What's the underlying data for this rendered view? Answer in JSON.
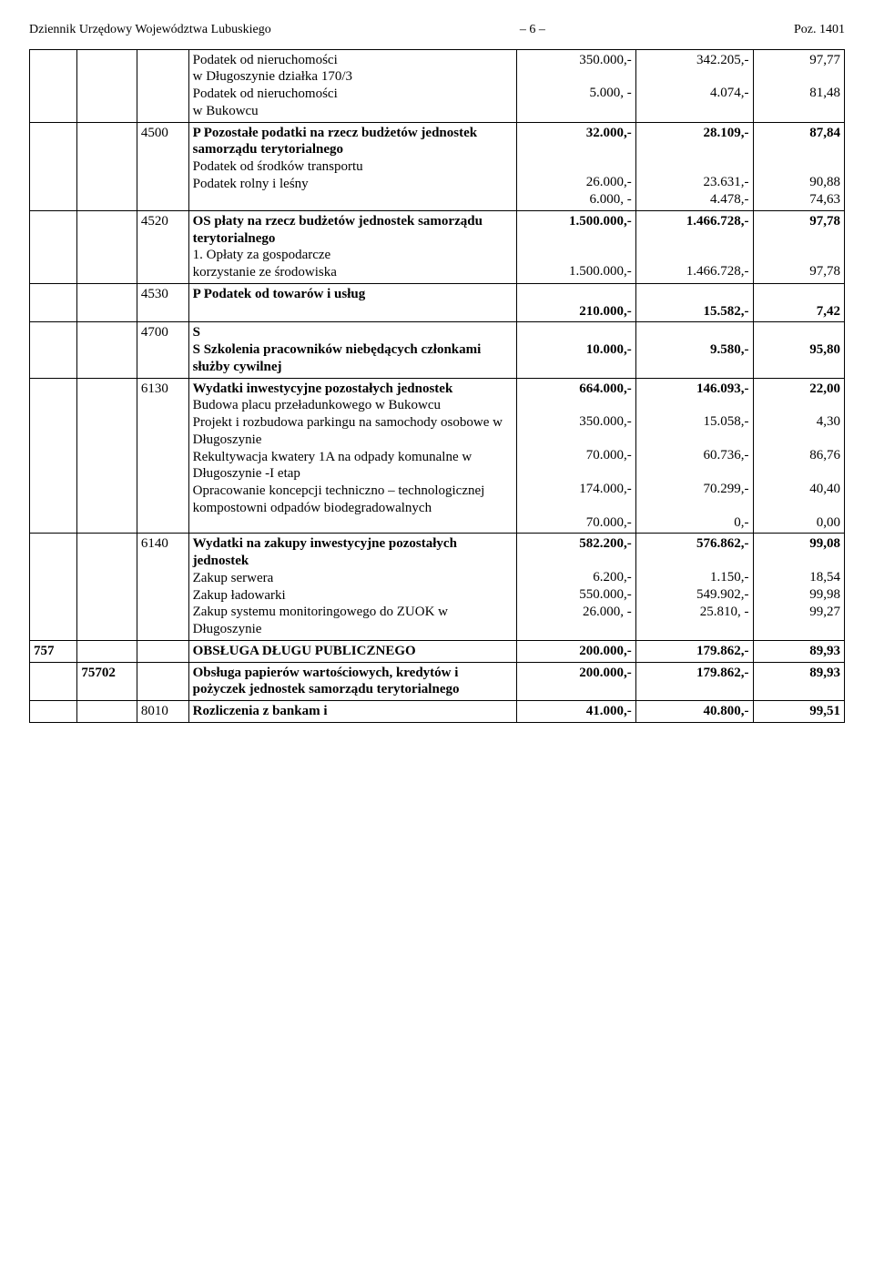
{
  "header": {
    "left": "Dziennik Urzędowy Województwa Lubuskiego",
    "center": "– 6 –",
    "right": "Poz. 1401"
  },
  "rows": {
    "r1": {
      "desc1": "Podatek od nieruchomości",
      "desc2": "w Długoszynie działka 170/3",
      "desc3": "Podatek od nieruchomości",
      "desc4": "w Bukowcu",
      "v_e1": "350.000,-",
      "v_f1": "342.205,-",
      "v_g1": "97,77",
      "v_e2": "5.000, -",
      "v_f2": "4.074,-",
      "v_g2": "81,48"
    },
    "r2": {
      "code": "4500",
      "title": "P Pozostałe podatki na rzecz budżetów jednostek samorządu terytorialnego",
      "line2": "Podatek od środków transportu",
      "line3": "Podatek rolny i leśny",
      "v_e1": "32.000,-",
      "v_f1": "28.109,-",
      "v_g1": "87,84",
      "v_e2": "26.000,-",
      "v_f2": "23.631,-",
      "v_g2": "90,88",
      "v_e3": "6.000, -",
      "v_f3": "4.478,-",
      "v_g3": "74,63"
    },
    "r3": {
      "code": "4520",
      "title": "OS płaty na rzecz budżetów jednostek samorządu terytorialnego",
      "line2a": "1. Opłaty za gospodarcze",
      "line2b": "korzystanie ze środowiska",
      "v_e1": "1.500.000,-",
      "v_f1": "1.466.728,-",
      "v_g1": "97,78",
      "v_e2": "1.500.000,-",
      "v_f2": "1.466.728,-",
      "v_g2": "97,78"
    },
    "r4": {
      "code": "4530",
      "title": "P Podatek od towarów i usług",
      "v_e1": "210.000,-",
      "v_f1": "15.582,-",
      "v_g1": "7,42"
    },
    "r5": {
      "code": "4700",
      "preline": "S",
      "title": "S Szkolenia pracowników niebędących członkami służby cywilnej",
      "v_e1": "10.000,-",
      "v_f1": "9.580,-",
      "v_g1": "95,80"
    },
    "r6": {
      "code": "6130",
      "title": "Wydatki inwestycyjne pozostałych jednostek",
      "l1": "Budowa placu przeładunkowego w Bukowcu",
      "l2": "Projekt i rozbudowa parkingu na samochody osobowe w Długoszynie",
      "l3": "Rekultywacja kwatery 1A na odpady komunalne w Długoszynie -I etap",
      "l4": "Opracowanie koncepcji techniczno – technologicznej kompostowni odpadów biodegradowalnych",
      "v_e1": "664.000,-",
      "v_f1": "146.093,-",
      "v_g1": "22,00",
      "v_e2": "350.000,-",
      "v_f2": "15.058,-",
      "v_g2": "4,30",
      "v_e3": "70.000,-",
      "v_f3": "60.736,-",
      "v_g3": "86,76",
      "v_e4": "174.000,-",
      "v_f4": "70.299,-",
      "v_g4": "40,40",
      "v_e5": "70.000,-",
      "v_f5": "0,-",
      "v_g5": "0,00"
    },
    "r7": {
      "code": "6140",
      "title": "Wydatki na zakupy inwestycyjne pozostałych jednostek",
      "l1": "Zakup serwera",
      "l2": "Zakup ładowarki",
      "l3": "Zakup systemu monitoringowego do ZUOK w Długoszynie",
      "v_e1": "582.200,-",
      "v_f1": "576.862,-",
      "v_g1": "99,08",
      "v_e2": "6.200,-",
      "v_f2": "1.150,-",
      "v_g2": "18,54",
      "v_e3": "550.000,-",
      "v_f3": "549.902,-",
      "v_g3": "99,98",
      "v_e4": "26.000, -",
      "v_f4": "25.810, -",
      "v_g4": "99,27"
    },
    "r8": {
      "code": "757",
      "title": "OBSŁUGA DŁUGU PUBLICZNEGO",
      "v_e1": "200.000,-",
      "v_f1": "179.862,-",
      "v_g1": "89,93"
    },
    "r9": {
      "code": "75702",
      "title": "Obsługa papierów wartościowych, kredytów i pożyczek jednostek samorządu terytorialnego",
      "v_e1": "200.000,-",
      "v_f1": "179.862,-",
      "v_g1": "89,93"
    },
    "r10": {
      "code": "8010",
      "title": "Rozliczenia z bankam i",
      "v_e1": "41.000,-",
      "v_f1": "40.800,-",
      "v_g1": "99,51"
    }
  }
}
